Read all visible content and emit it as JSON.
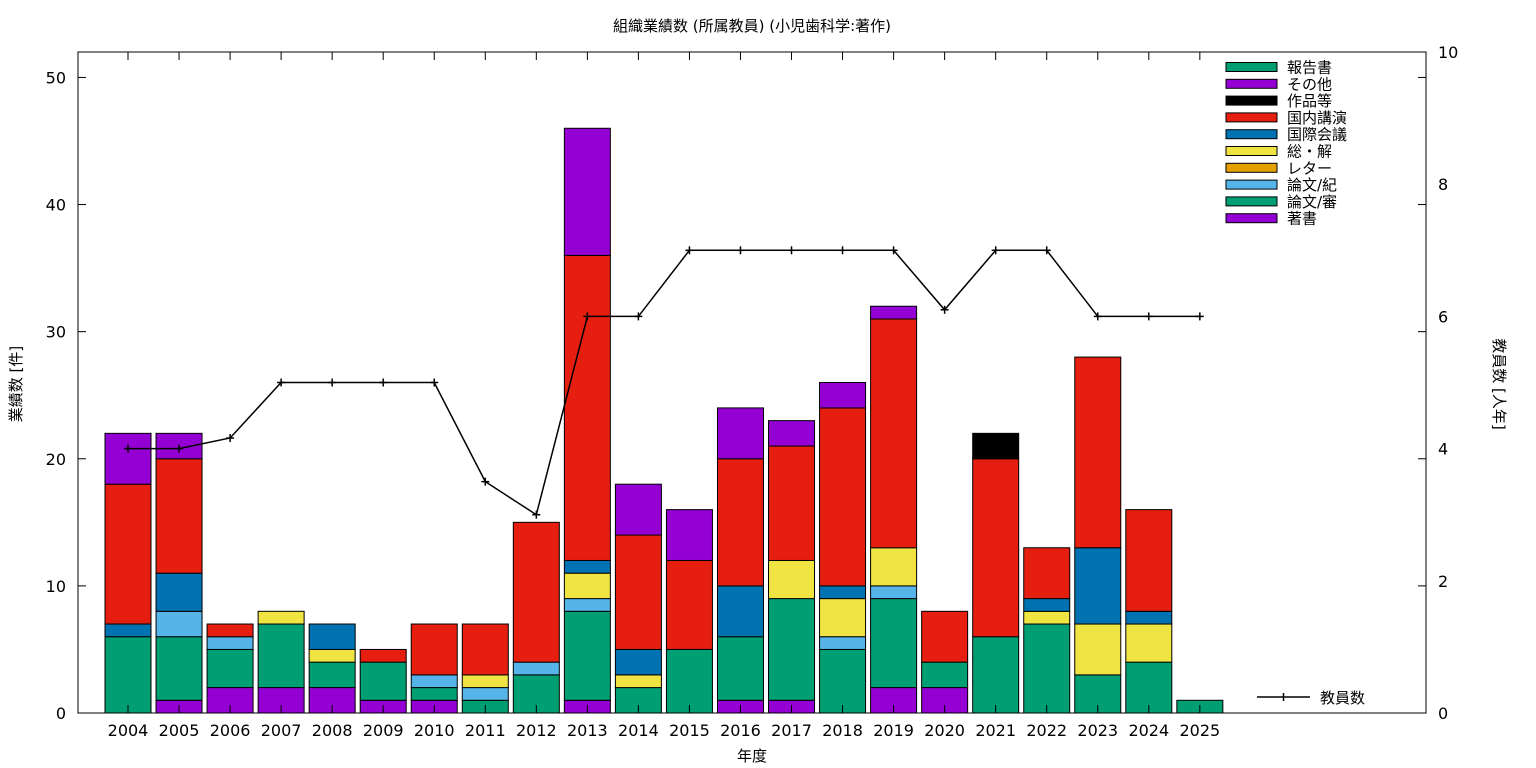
{
  "chart_data": {
    "type": "bar",
    "stacked": true,
    "title": "組織業績数 (所属教員) (小児歯科学:著作)",
    "xlabel": "年度",
    "ylabel": "業績数 [件]",
    "y2label": "教員数 [人年]",
    "ylim": [
      0,
      52
    ],
    "y2lim": [
      0,
      10
    ],
    "yticks": [
      "0",
      "10",
      "20",
      "30",
      "40",
      "50"
    ],
    "y2ticks": [
      "0",
      "2",
      "4",
      "6",
      "8",
      "10"
    ],
    "grid": false,
    "legend_position": "top-right",
    "categories": [
      "2004",
      "2005",
      "2006",
      "2007",
      "2008",
      "2009",
      "2010",
      "2011",
      "2012",
      "2013",
      "2014",
      "2015",
      "2016",
      "2017",
      "2018",
      "2019",
      "2020",
      "2021",
      "2022",
      "2023",
      "2024",
      "2025"
    ],
    "series": [
      {
        "name": "著書",
        "color": "#9400d3",
        "values": [
          0,
          1,
          2,
          2,
          2,
          1,
          1,
          0,
          0,
          1,
          0,
          0,
          1,
          1,
          0,
          2,
          2,
          0,
          0,
          0,
          0,
          0
        ]
      },
      {
        "name": "論文/審",
        "color": "#009e73",
        "values": [
          6,
          5,
          3,
          5,
          2,
          3,
          1,
          1,
          3,
          7,
          2,
          5,
          5,
          8,
          5,
          7,
          2,
          6,
          7,
          3,
          4,
          1
        ]
      },
      {
        "name": "論文/紀",
        "color": "#56b4e9",
        "values": [
          0,
          2,
          1,
          0,
          0,
          0,
          1,
          1,
          1,
          1,
          0,
          0,
          0,
          0,
          1,
          1,
          0,
          0,
          0,
          0,
          0,
          0
        ]
      },
      {
        "name": "レター",
        "color": "#e69f00",
        "values": [
          0,
          0,
          0,
          0,
          0,
          0,
          0,
          0,
          0,
          0,
          0,
          0,
          0,
          0,
          0,
          0,
          0,
          0,
          0,
          0,
          0,
          0
        ]
      },
      {
        "name": "総・解",
        "color": "#f0e442",
        "values": [
          0,
          0,
          0,
          1,
          1,
          0,
          0,
          1,
          0,
          2,
          1,
          0,
          0,
          3,
          3,
          3,
          0,
          0,
          1,
          4,
          3,
          0
        ]
      },
      {
        "name": "国際会議",
        "color": "#0072b2",
        "values": [
          1,
          3,
          0,
          0,
          2,
          0,
          0,
          0,
          0,
          1,
          2,
          0,
          4,
          0,
          1,
          0,
          0,
          0,
          1,
          6,
          1,
          0
        ]
      },
      {
        "name": "国内講演",
        "color": "#e51e10",
        "values": [
          11,
          9,
          1,
          0,
          0,
          1,
          4,
          4,
          11,
          24,
          9,
          7,
          10,
          9,
          14,
          18,
          4,
          14,
          4,
          15,
          8,
          0
        ]
      },
      {
        "name": "作品等",
        "color": "#000000",
        "values": [
          0,
          0,
          0,
          0,
          0,
          0,
          0,
          0,
          0,
          0,
          0,
          0,
          0,
          0,
          0,
          0,
          0,
          2,
          0,
          0,
          0,
          0
        ]
      },
      {
        "name": "その他",
        "color": "#9400d3",
        "values": [
          4,
          2,
          0,
          0,
          0,
          0,
          0,
          0,
          0,
          10,
          4,
          4,
          4,
          2,
          2,
          1,
          0,
          0,
          0,
          0,
          0,
          0
        ]
      },
      {
        "name": "報告書",
        "color": "#009e73",
        "values": [
          0,
          0,
          0,
          0,
          0,
          0,
          0,
          0,
          0,
          0,
          0,
          0,
          0,
          0,
          0,
          0,
          0,
          0,
          0,
          0,
          0,
          0
        ]
      }
    ],
    "legend_order": [
      "報告書",
      "その他",
      "作品等",
      "国内講演",
      "国際会議",
      "総・解",
      "レター",
      "論文/紀",
      "論文/審",
      "著書"
    ],
    "line_series": {
      "name": "教員数",
      "axis": "y2",
      "color": "#000000",
      "values": [
        4,
        4,
        4.16,
        5,
        5,
        5,
        5,
        3.5,
        3,
        6,
        6,
        7,
        7,
        7,
        7,
        7,
        6.1,
        7,
        7,
        6,
        6,
        6
      ]
    }
  }
}
